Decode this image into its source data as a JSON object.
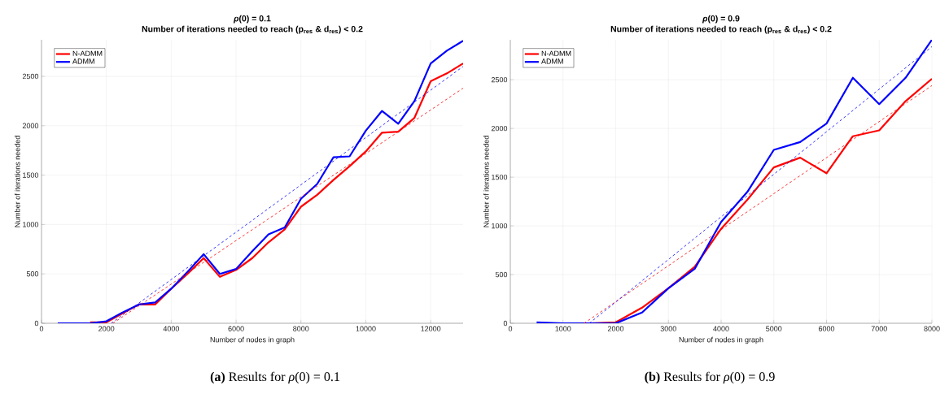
{
  "chart_data": [
    {
      "type": "line",
      "title": "*ρ*(0) = 0.1",
      "subtitle": "Number of iterations needed to reach (p$_{res}$ & d$_{res}$) < 0.2",
      "xlabel": "Number of nodes in graph",
      "ylabel": "Number of iterations needed",
      "annotations": [
        "**(a)** Results for *ρ*(0) = 0.1"
      ],
      "x": [
        500,
        1000,
        1500,
        2000,
        2500,
        3000,
        3500,
        4000,
        4500,
        5000,
        5500,
        6000,
        6500,
        7000,
        7500,
        8000,
        8500,
        9000,
        9500,
        10000,
        10500,
        11000,
        11500,
        12000,
        12500,
        13000
      ],
      "series": [
        {
          "name": "N-ADMM",
          "color": "#ff0000",
          "values": [
            null,
            null,
            10,
            10,
            100,
            190,
            190,
            350,
            500,
            660,
            470,
            540,
            660,
            820,
            950,
            1180,
            1300,
            1450,
            1590,
            1740,
            1930,
            1940,
            2080,
            2450,
            2530,
            2630
          ]
        },
        {
          "name": "ADMM",
          "color": "#0000ff",
          "values": [
            0,
            0,
            0,
            20,
            110,
            190,
            210,
            350,
            520,
            700,
            500,
            550,
            730,
            900,
            970,
            1260,
            1410,
            1680,
            1690,
            1950,
            2150,
            2020,
            2250,
            2630,
            2760,
            2860
          ]
        },
        {
          "type": "line",
          "line_style": "dashed",
          "color": "#ff0000",
          "x": [
            2200,
            13000
          ],
          "values": [
            0,
            2380
          ]
        },
        {
          "type": "line",
          "line_style": "dashed",
          "color": "#0000ff",
          "x": [
            2150,
            13000
          ],
          "values": [
            0,
            2600
          ]
        }
      ],
      "xlim": [
        0,
        13000
      ],
      "ylim": [
        0,
        2870
      ],
      "xticks": [
        0,
        2000,
        4000,
        6000,
        8000,
        10000,
        12000
      ],
      "yticks": [
        0,
        500,
        1000,
        1500,
        2000,
        2500
      ],
      "grid": true,
      "legend": "top left",
      "line_style": "solid"
    },
    {
      "type": "line",
      "title": "*ρ*(0) = 0.9",
      "subtitle": "Number of iterations needed to reach (p$_{res}$ & d$_{res}$) < 0.2",
      "xlabel": "Number of nodes in graph",
      "ylabel": "Number of iterations needed",
      "annotations": [
        "**(b)** Results for *ρ*(0) = 0.9"
      ],
      "x": [
        500,
        1000,
        1500,
        2000,
        2500,
        3000,
        3500,
        4000,
        4500,
        5000,
        5500,
        6000,
        6500,
        7000,
        7500,
        8000
      ],
      "series": [
        {
          "name": "N-ADMM",
          "color": "#ff0000",
          "values": [
            null,
            null,
            0,
            10,
            160,
            360,
            580,
            970,
            1270,
            1600,
            1700,
            1540,
            1920,
            1980,
            2280,
            2510
          ]
        },
        {
          "name": "ADMM",
          "color": "#0000ff",
          "values": [
            10,
            0,
            0,
            0,
            110,
            360,
            560,
            1040,
            1350,
            1780,
            1860,
            2050,
            2520,
            2250,
            2520,
            2910
          ]
        },
        {
          "type": "line",
          "line_style": "dashed",
          "color": "#ff0000",
          "x": [
            1400,
            8000
          ],
          "values": [
            0,
            2440
          ]
        },
        {
          "type": "line",
          "line_style": "dashed",
          "color": "#0000ff",
          "x": [
            1500,
            8000
          ],
          "values": [
            0,
            2840
          ]
        }
      ],
      "xlim": [
        0,
        8000
      ],
      "ylim": [
        0,
        2910
      ],
      "xticks": [
        0,
        1000,
        2000,
        3000,
        4000,
        5000,
        6000,
        7000,
        8000
      ],
      "yticks": [
        0,
        500,
        1000,
        1500,
        2000,
        2500
      ],
      "grid": true,
      "legend": "top left",
      "line_style": "solid"
    }
  ]
}
